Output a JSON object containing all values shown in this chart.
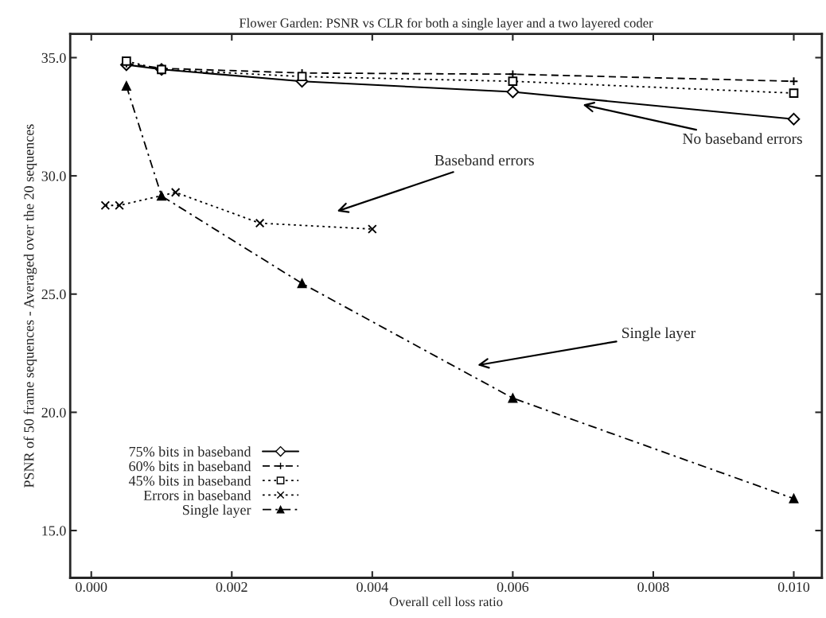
{
  "chart_data": {
    "type": "line",
    "title": "Flower Garden: PSNR vs CLR for both a single layer and a two layered coder",
    "xlabel": "Overall cell loss ratio",
    "ylabel": "PSNR of 50 frame sequences - Averaged over the 20 sequences",
    "xlim": [
      -0.0003,
      0.0104
    ],
    "xticks": [
      {
        "value": 0,
        "label": "0.000"
      },
      0.002,
      0.004,
      0.006,
      0.008,
      {
        "value": 0.01,
        "label": "0.010"
      }
    ],
    "ylim": [
      13,
      36
    ],
    "yticks": [
      {
        "value": 15,
        "label": "15.0"
      },
      {
        "value": 20,
        "label": "20.0"
      },
      {
        "value": 25,
        "label": "25.0"
      },
      {
        "value": 30,
        "label": "30.0"
      },
      {
        "value": 35,
        "label": "35.0"
      }
    ],
    "grid": false,
    "legend": "bottom left",
    "series": [
      {
        "name": "75% bits in baseband",
        "color": "#000000",
        "marker": "diamond",
        "line_style": "solid",
        "x": [
          0.0005,
          0.001,
          0.003,
          0.006,
          0.01
        ],
        "values": [
          34.7,
          34.5,
          34.0,
          33.55,
          32.4
        ]
      },
      {
        "name": "60% bits in baseband",
        "color": "#000000",
        "marker": "plus",
        "line_style": "dashed",
        "x": [
          0.0005,
          0.001,
          0.003,
          0.006,
          0.01
        ],
        "values": [
          34.75,
          34.55,
          34.35,
          34.3,
          34.0
        ]
      },
      {
        "name": "45% bits in baseband",
        "color": "#000000",
        "marker": "square",
        "line_style": "dotted",
        "x": [
          0.0005,
          0.001,
          0.003,
          0.006,
          0.01
        ],
        "values": [
          34.85,
          34.5,
          34.2,
          34.0,
          33.5
        ]
      },
      {
        "name": "Errors in baseband",
        "color": "#000000",
        "marker": "cross",
        "line_style": "dotted",
        "x": [
          0.0002,
          0.0004,
          0.0012,
          0.0024,
          0.004
        ],
        "values": [
          28.75,
          28.75,
          29.3,
          28.0,
          27.75
        ]
      },
      {
        "name": "Single layer",
        "color": "#000000",
        "marker": "triangle",
        "line_style": "dashdot",
        "x": [
          0.0005,
          0.001,
          0.003,
          0.006,
          0.01
        ],
        "values": [
          33.8,
          29.15,
          25.45,
          20.6,
          16.35
        ]
      }
    ],
    "annotations": [
      "No baseband errors",
      "Baseband errors",
      "Single layer"
    ]
  }
}
